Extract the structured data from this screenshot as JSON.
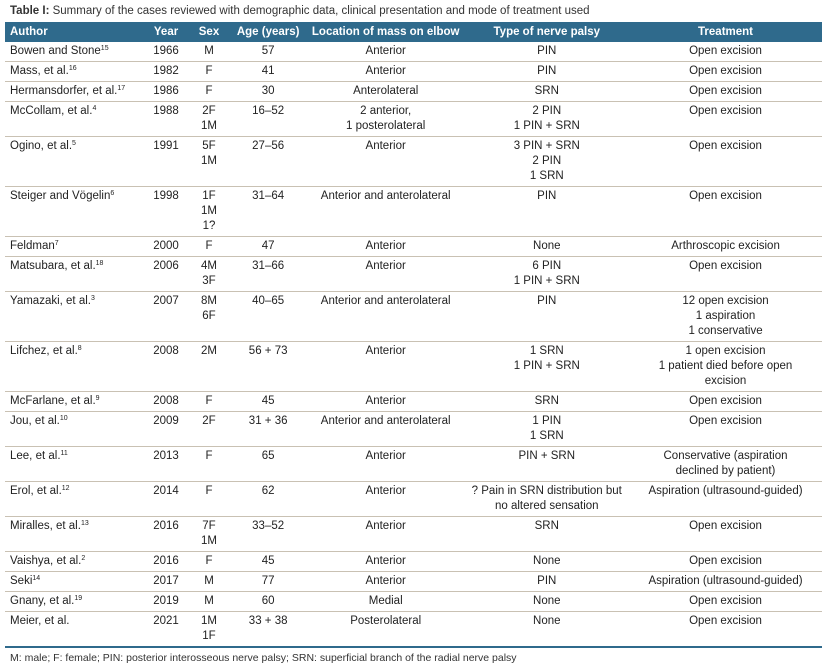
{
  "caption": {
    "label": "Table I:",
    "text": " Summary of the cases reviewed with demographic data, clinical presentation and mode of treatment used"
  },
  "colors": {
    "header_bg": "#2f6a8c",
    "row_border": "#c9c1b3"
  },
  "columns": [
    "Author",
    "Year",
    "Sex",
    "Age (years)",
    "Location of mass on elbow",
    "Type of nerve palsy",
    "Treatment"
  ],
  "rows": [
    {
      "author": "Bowen and Stone",
      "ref": "15",
      "year": "1966",
      "sex": "M",
      "age": "57",
      "location": "Anterior",
      "palsy": "PIN",
      "treatment": "Open excision"
    },
    {
      "author": "Mass, et al.",
      "ref": "16",
      "year": "1982",
      "sex": "F",
      "age": "41",
      "location": "Anterior",
      "palsy": "PIN",
      "treatment": "Open excision"
    },
    {
      "author": "Hermansdorfer, et al.",
      "ref": "17",
      "year": "1986",
      "sex": "F",
      "age": "30",
      "location": "Anterolateral",
      "palsy": "SRN",
      "treatment": "Open excision"
    },
    {
      "author": "McCollam, et al.",
      "ref": "4",
      "year": "1988",
      "sex": "2F\n1M",
      "age": "16–52",
      "location": "2 anterior,\n1 posterolateral",
      "palsy": "2 PIN\n1 PIN + SRN",
      "treatment": "Open excision"
    },
    {
      "author": "Ogino, et al.",
      "ref": "5",
      "year": "1991",
      "sex": "5F\n1M",
      "age": "27–56",
      "location": "Anterior",
      "palsy": "3 PIN + SRN\n2 PIN\n1 SRN",
      "treatment": "Open excision"
    },
    {
      "author": "Steiger and Vögelin",
      "ref": "6",
      "year": "1998",
      "sex": "1F\n1M\n1?",
      "age": "31–64",
      "location": "Anterior and anterolateral",
      "palsy": "PIN",
      "treatment": "Open excision"
    },
    {
      "author": "Feldman",
      "ref": "7",
      "year": "2000",
      "sex": "F",
      "age": "47",
      "location": "Anterior",
      "palsy": "None",
      "treatment": "Arthroscopic excision"
    },
    {
      "author": "Matsubara, et al.",
      "ref": "18",
      "year": "2006",
      "sex": "4M\n3F",
      "age": "31–66",
      "location": "Anterior",
      "palsy": "6 PIN\n1 PIN + SRN",
      "treatment": "Open excision"
    },
    {
      "author": "Yamazaki, et al.",
      "ref": "3",
      "year": "2007",
      "sex": "8M\n6F",
      "age": "40–65",
      "location": "Anterior and anterolateral",
      "palsy": "PIN",
      "treatment": "12 open excision\n1 aspiration\n1 conservative"
    },
    {
      "author": "Lifchez, et al.",
      "ref": "8",
      "year": "2008",
      "sex": "2M",
      "age": "56 + 73",
      "location": "Anterior",
      "palsy": "1 SRN\n1 PIN + SRN",
      "treatment": "1 open excision\n1 patient died before open\nexcision"
    },
    {
      "author": "McFarlane, et al.",
      "ref": "9",
      "year": "2008",
      "sex": "F",
      "age": "45",
      "location": "Anterior",
      "palsy": "SRN",
      "treatment": "Open excision"
    },
    {
      "author": "Jou, et al.",
      "ref": "10",
      "year": "2009",
      "sex": "2F",
      "age": "31 + 36",
      "location": "Anterior and anterolateral",
      "palsy": "1 PIN\n1 SRN",
      "treatment": "Open excision"
    },
    {
      "author": "Lee, et al.",
      "ref": "11",
      "year": "2013",
      "sex": "F",
      "age": "65",
      "location": "Anterior",
      "palsy": "PIN + SRN",
      "treatment": "Conservative (aspiration\ndeclined by patient)"
    },
    {
      "author": "Erol, et al.",
      "ref": "12",
      "year": "2014",
      "sex": "F",
      "age": "62",
      "location": "Anterior",
      "palsy": "? Pain in SRN distribution but\nno altered sensation",
      "treatment": "Aspiration (ultrasound-guided)"
    },
    {
      "author": "Miralles, et al.",
      "ref": "13",
      "year": "2016",
      "sex": "7F\n1M",
      "age": "33–52",
      "location": "Anterior",
      "palsy": "SRN",
      "treatment": "Open excision"
    },
    {
      "author": "Vaishya, et al.",
      "ref": "2",
      "year": "2016",
      "sex": "F",
      "age": "45",
      "location": "Anterior",
      "palsy": "None",
      "treatment": "Open excision"
    },
    {
      "author": "Seki",
      "ref": "14",
      "year": "2017",
      "sex": "M",
      "age": "77",
      "location": "Anterior",
      "palsy": "PIN",
      "treatment": "Aspiration (ultrasound-guided)"
    },
    {
      "author": "Gnany, et al.",
      "ref": "19",
      "year": "2019",
      "sex": "M",
      "age": "60",
      "location": "Medial",
      "palsy": "None",
      "treatment": "Open excision"
    },
    {
      "author": "Meier, et al.",
      "ref": "",
      "year": "2021",
      "sex": "1M\n1F",
      "age": "33 + 38",
      "location": "Posterolateral",
      "palsy": "None",
      "treatment": "Open excision"
    }
  ],
  "footer": "M: male; F: female; PIN: posterior interosseous nerve palsy; SRN: superficial branch of the radial nerve palsy"
}
